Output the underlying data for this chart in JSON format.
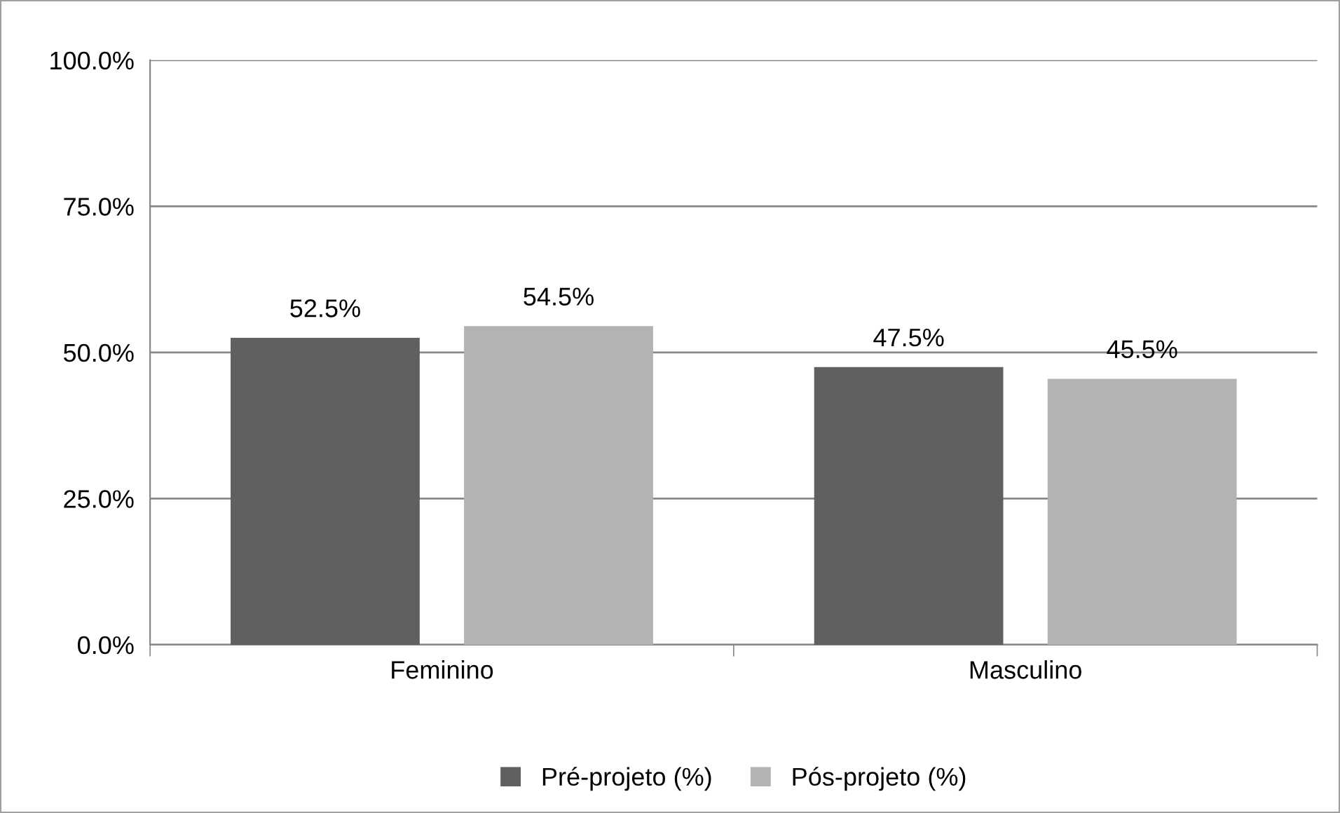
{
  "chart_data": {
    "type": "bar",
    "categories": [
      "Feminino",
      "Masculino"
    ],
    "series": [
      {
        "name": "Pré-projeto (%)",
        "color": "#606060",
        "values": [
          52.5,
          47.5
        ],
        "value_labels": [
          "52.5%",
          "47.5%"
        ]
      },
      {
        "name": "Pós-projeto (%)",
        "color": "#b3b3b3",
        "values": [
          54.5,
          45.5
        ],
        "value_labels": [
          "54.5%",
          "45.5%"
        ]
      }
    ],
    "ylim": [
      0,
      100
    ],
    "yticks": [
      {
        "value": 0,
        "label": "0.0%"
      },
      {
        "value": 25,
        "label": "25.0%"
      },
      {
        "value": 50,
        "label": "50.0%"
      },
      {
        "value": 75,
        "label": "75.0%"
      },
      {
        "value": 100,
        "label": "100.0%"
      }
    ],
    "grid": "y",
    "legend": "bottom"
  }
}
